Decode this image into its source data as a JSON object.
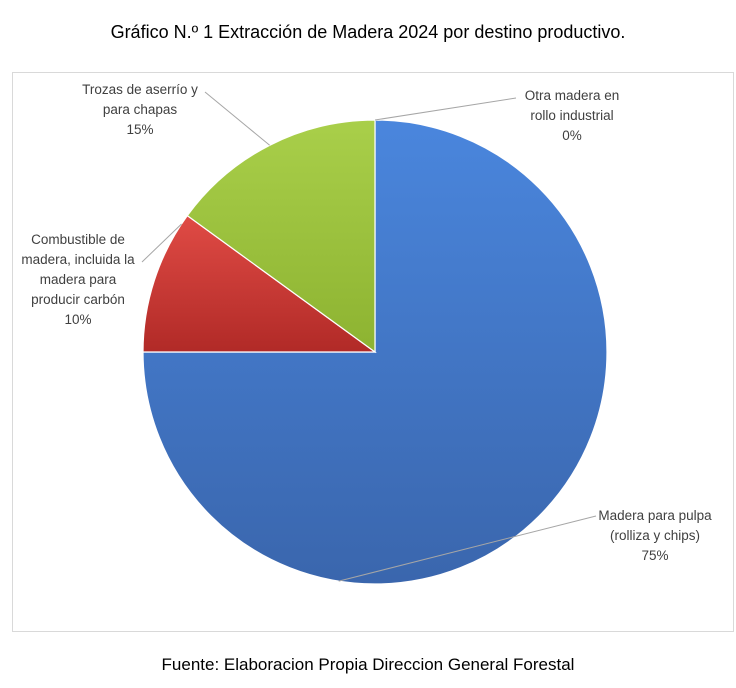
{
  "title": "Gráfico N.º 1 Extracción de Madera 2024 por destino productivo.",
  "source": "Fuente: Elaboracion Propia Direccion General Forestal",
  "chart_data": {
    "type": "pie",
    "title": "Gráfico N.º 1 Extracción de Madera 2024 por destino productivo.",
    "categories": [
      "Madera para pulpa (rolliza y chips)",
      "Combustible de madera, incluida la madera para producir carbón",
      "Trozas de aserrío y para chapas",
      "Otra madera en rollo industrial"
    ],
    "values": [
      75,
      10,
      15,
      0
    ],
    "percent_labels": [
      "75%",
      "10%",
      "15%",
      "0%"
    ],
    "label_lines": [
      [
        "Madera para pulpa",
        "(rolliza y chips)",
        "75%"
      ],
      [
        "Combustible de",
        "madera, incluida la",
        "madera para",
        "producir carbón",
        "10%"
      ],
      [
        "Trozas de aserrío y",
        "para chapas",
        "15%"
      ],
      [
        "Otra madera en",
        "rollo industrial",
        "0%"
      ]
    ],
    "colors": [
      "#3f76c9",
      "#c5312f",
      "#9bc23b",
      "#8064a2"
    ],
    "legend": "none"
  }
}
